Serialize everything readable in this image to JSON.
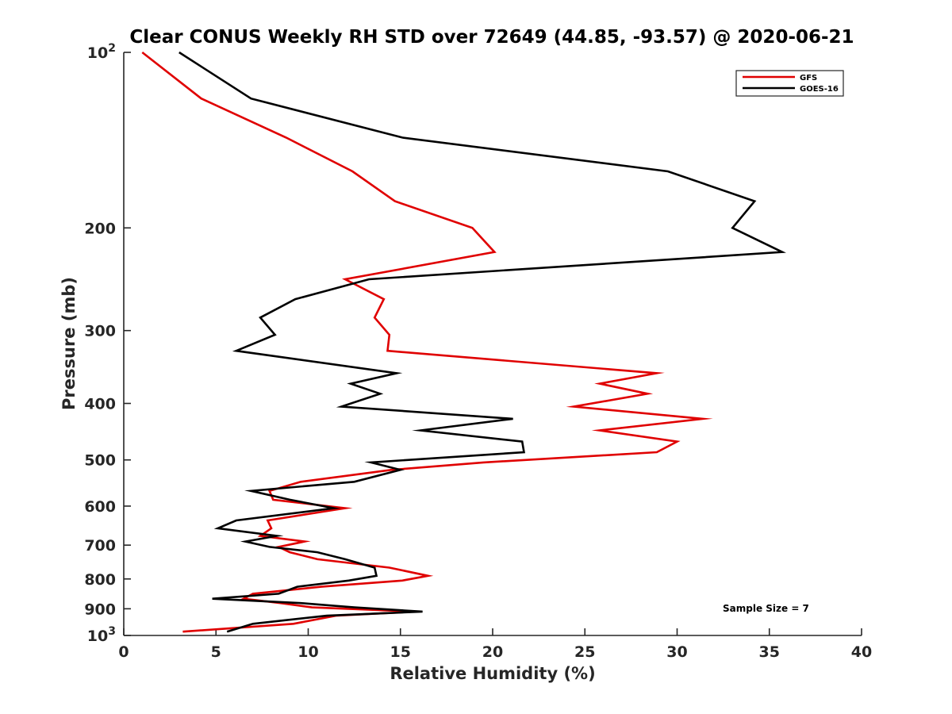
{
  "chart_data": {
    "type": "line",
    "title": "Clear CONUS Weekly RH STD over 72649 (44.85, -93.57) @ 2020-06-21",
    "xlabel": "Relative Humidity (%)",
    "ylabel": "Pressure (mb)",
    "xlim": [
      0,
      40
    ],
    "ylim": [
      100,
      1000
    ],
    "y_scale": "log",
    "y_reversed": true,
    "grid": false,
    "legend_position": "top-right",
    "x_ticks": [
      0,
      5,
      10,
      15,
      20,
      25,
      30,
      35,
      40
    ],
    "y_ticks": [
      {
        "value": 100,
        "label": "10",
        "sup": "2"
      },
      {
        "value": 200,
        "label": "200"
      },
      {
        "value": 300,
        "label": "300"
      },
      {
        "value": 400,
        "label": "400"
      },
      {
        "value": 500,
        "label": "500"
      },
      {
        "value": 600,
        "label": "600"
      },
      {
        "value": 700,
        "label": "700"
      },
      {
        "value": 800,
        "label": "800"
      },
      {
        "value": 900,
        "label": "900"
      },
      {
        "value": 1000,
        "label": "10",
        "sup": "3"
      }
    ],
    "series": [
      {
        "name": "GFS",
        "color": "#e00000",
        "points": [
          [
            1.0,
            100
          ],
          [
            4.2,
            120
          ],
          [
            8.8,
            140
          ],
          [
            12.4,
            160
          ],
          [
            14.7,
            180
          ],
          [
            18.9,
            200
          ],
          [
            20.1,
            220
          ],
          [
            12.0,
            245
          ],
          [
            14.1,
            265
          ],
          [
            13.6,
            285
          ],
          [
            14.4,
            305
          ],
          [
            14.3,
            325
          ],
          [
            28.9,
            355
          ],
          [
            25.8,
            370
          ],
          [
            28.4,
            385
          ],
          [
            24.4,
            405
          ],
          [
            31.4,
            425
          ],
          [
            25.8,
            445
          ],
          [
            30.0,
            465
          ],
          [
            28.9,
            485
          ],
          [
            19.5,
            505
          ],
          [
            14.5,
            520
          ],
          [
            9.6,
            545
          ],
          [
            7.9,
            565
          ],
          [
            8.1,
            585
          ],
          [
            12.0,
            605
          ],
          [
            7.8,
            635
          ],
          [
            8.0,
            655
          ],
          [
            7.4,
            675
          ],
          [
            9.8,
            690
          ],
          [
            8.4,
            705
          ],
          [
            9.0,
            720
          ],
          [
            10.5,
            740
          ],
          [
            14.4,
            765
          ],
          [
            16.5,
            790
          ],
          [
            15.1,
            805
          ],
          [
            10.7,
            825
          ],
          [
            7.0,
            848
          ],
          [
            6.5,
            865
          ],
          [
            8.5,
            880
          ],
          [
            10.2,
            895
          ],
          [
            15.8,
            910
          ],
          [
            11.5,
            925
          ],
          [
            9.2,
            955
          ],
          [
            3.2,
            985
          ]
        ]
      },
      {
        "name": "GOES-16",
        "color": "#000000",
        "points": [
          [
            3.0,
            100
          ],
          [
            6.9,
            120
          ],
          [
            15.1,
            140
          ],
          [
            29.5,
            160
          ],
          [
            34.2,
            180
          ],
          [
            33.0,
            200
          ],
          [
            35.7,
            220
          ],
          [
            13.3,
            245
          ],
          [
            9.3,
            265
          ],
          [
            7.4,
            285
          ],
          [
            8.2,
            305
          ],
          [
            6.1,
            325
          ],
          [
            14.8,
            355
          ],
          [
            12.3,
            370
          ],
          [
            13.9,
            385
          ],
          [
            11.8,
            405
          ],
          [
            21.1,
            425
          ],
          [
            16.1,
            445
          ],
          [
            21.6,
            465
          ],
          [
            21.7,
            485
          ],
          [
            13.4,
            505
          ],
          [
            15.0,
            520
          ],
          [
            12.5,
            545
          ],
          [
            6.9,
            565
          ],
          [
            9.0,
            585
          ],
          [
            11.4,
            605
          ],
          [
            6.1,
            635
          ],
          [
            5.1,
            655
          ],
          [
            8.3,
            675
          ],
          [
            6.6,
            690
          ],
          [
            7.9,
            705
          ],
          [
            10.5,
            720
          ],
          [
            12.0,
            740
          ],
          [
            13.6,
            765
          ],
          [
            13.7,
            790
          ],
          [
            12.2,
            805
          ],
          [
            9.4,
            825
          ],
          [
            8.4,
            848
          ],
          [
            4.8,
            865
          ],
          [
            9.6,
            880
          ],
          [
            12.5,
            895
          ],
          [
            16.2,
            910
          ],
          [
            11.0,
            925
          ],
          [
            7.0,
            955
          ],
          [
            5.6,
            985
          ]
        ]
      }
    ],
    "annotation": "Sample Size = 7"
  }
}
